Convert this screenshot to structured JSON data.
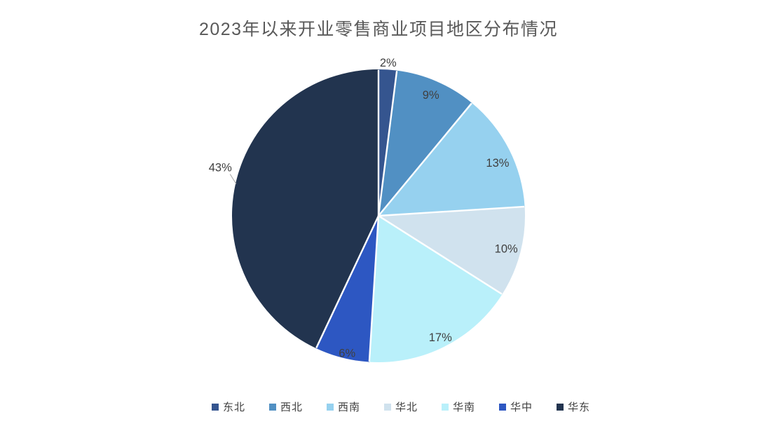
{
  "page": {
    "background": "#FFFFFF"
  },
  "chart_data": {
    "type": "pie",
    "title": "2023年以来开业零售商业项目地区分布情况",
    "legend_position": "bottom",
    "start_angle_deg": 0,
    "direction": "clockwise",
    "slices": [
      {
        "label": "东北",
        "value": 2,
        "pct_label": "2%",
        "color": "#35558F",
        "label_placement": "outside",
        "label_r": 1.05,
        "label_angle_offset": 0
      },
      {
        "label": "西北",
        "value": 9,
        "pct_label": "9%",
        "color": "#5190C3",
        "label_placement": "inside",
        "label_r": 0.9,
        "label_angle_offset": 0
      },
      {
        "label": "西南",
        "value": 13,
        "pct_label": "13%",
        "color": "#96D1EF",
        "label_placement": "inside",
        "label_r": 0.89,
        "label_angle_offset": 3
      },
      {
        "label": "华北",
        "value": 10,
        "pct_label": "10%",
        "color": "#D0E2EE",
        "label_placement": "inside",
        "label_r": 0.9,
        "label_angle_offset": 0
      },
      {
        "label": "华南",
        "value": 17,
        "pct_label": "17%",
        "color": "#B9F0FA",
        "label_placement": "inside",
        "label_r": 0.93,
        "label_angle_offset": 0
      },
      {
        "label": "华中",
        "value": 6,
        "pct_label": "6%",
        "color": "#2D57C2",
        "label_placement": "inside",
        "label_r": 0.96,
        "label_angle_offset": -1.5
      },
      {
        "label": "华东",
        "value": 43,
        "pct_label": "43%",
        "color": "#22344F",
        "label_placement": "outside",
        "label_r": 1.13,
        "label_angle_offset": 4.5,
        "leader_line": true
      }
    ],
    "colors": {
      "title_text": "#595959",
      "value_labels": "#404040",
      "legend_text": "#404040",
      "slice_separator": "#FFFFFF",
      "leader_line": "#A6A6A6"
    }
  }
}
